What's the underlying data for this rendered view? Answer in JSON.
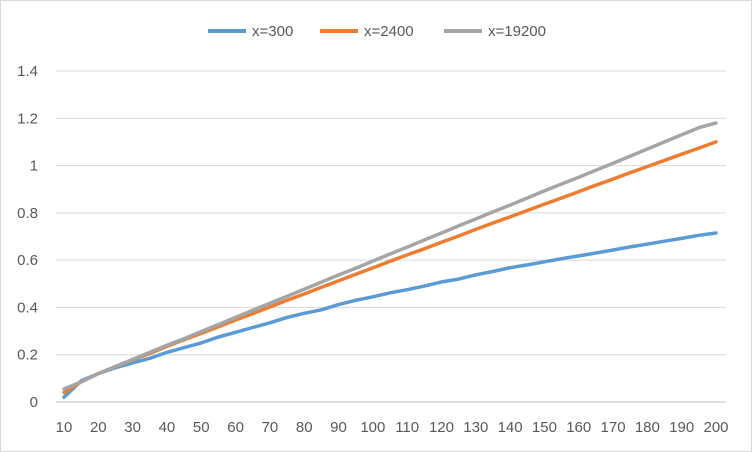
{
  "chart_data": {
    "type": "line",
    "title": "",
    "xlabel": "",
    "ylabel": "",
    "x": [
      10,
      15,
      20,
      25,
      30,
      35,
      40,
      45,
      50,
      55,
      60,
      65,
      70,
      75,
      80,
      85,
      90,
      95,
      100,
      105,
      110,
      115,
      120,
      125,
      130,
      135,
      140,
      145,
      150,
      155,
      160,
      165,
      170,
      175,
      180,
      185,
      190,
      195,
      200
    ],
    "x_ticks": [
      "10",
      "20",
      "30",
      "40",
      "50",
      "60",
      "70",
      "80",
      "90",
      "100",
      "110",
      "120",
      "130",
      "140",
      "150",
      "160",
      "170",
      "180",
      "190",
      "200"
    ],
    "y_ticks": [
      "0",
      "0.2",
      "0.4",
      "0.6",
      "0.8",
      "1",
      "1.2",
      "1.4"
    ],
    "ylim": [
      0,
      1.4
    ],
    "grid": true,
    "legend_position": "top",
    "series": [
      {
        "name": "x=300",
        "color": "#5b9bd5",
        "values": [
          0.02,
          0.09,
          0.12,
          0.145,
          0.165,
          0.185,
          0.21,
          0.23,
          0.25,
          0.275,
          0.295,
          0.315,
          0.335,
          0.358,
          0.375,
          0.39,
          0.412,
          0.43,
          0.445,
          0.462,
          0.475,
          0.49,
          0.508,
          0.52,
          0.538,
          0.552,
          0.568,
          0.58,
          0.593,
          0.606,
          0.618,
          0.63,
          0.643,
          0.656,
          0.668,
          0.68,
          0.692,
          0.705,
          0.715
        ]
      },
      {
        "name": "x=2400",
        "color": "#ed7d31",
        "values": [
          0.04,
          0.085,
          0.12,
          0.15,
          0.178,
          0.205,
          0.235,
          0.263,
          0.29,
          0.318,
          0.347,
          0.374,
          0.402,
          0.43,
          0.457,
          0.485,
          0.512,
          0.54,
          0.567,
          0.595,
          0.622,
          0.648,
          0.676,
          0.702,
          0.73,
          0.757,
          0.783,
          0.81,
          0.837,
          0.863,
          0.89,
          0.917,
          0.943,
          0.97,
          0.996,
          1.022,
          1.048,
          1.074,
          1.1
        ]
      },
      {
        "name": "x=19200",
        "color": "#a5a5a5",
        "values": [
          0.055,
          0.085,
          0.12,
          0.15,
          0.18,
          0.21,
          0.24,
          0.268,
          0.298,
          0.328,
          0.358,
          0.388,
          0.418,
          0.447,
          0.477,
          0.507,
          0.537,
          0.566,
          0.596,
          0.626,
          0.655,
          0.685,
          0.715,
          0.745,
          0.774,
          0.804,
          0.833,
          0.863,
          0.893,
          0.922,
          0.951,
          0.98,
          1.01,
          1.04,
          1.07,
          1.1,
          1.13,
          1.16,
          1.18
        ]
      }
    ]
  }
}
